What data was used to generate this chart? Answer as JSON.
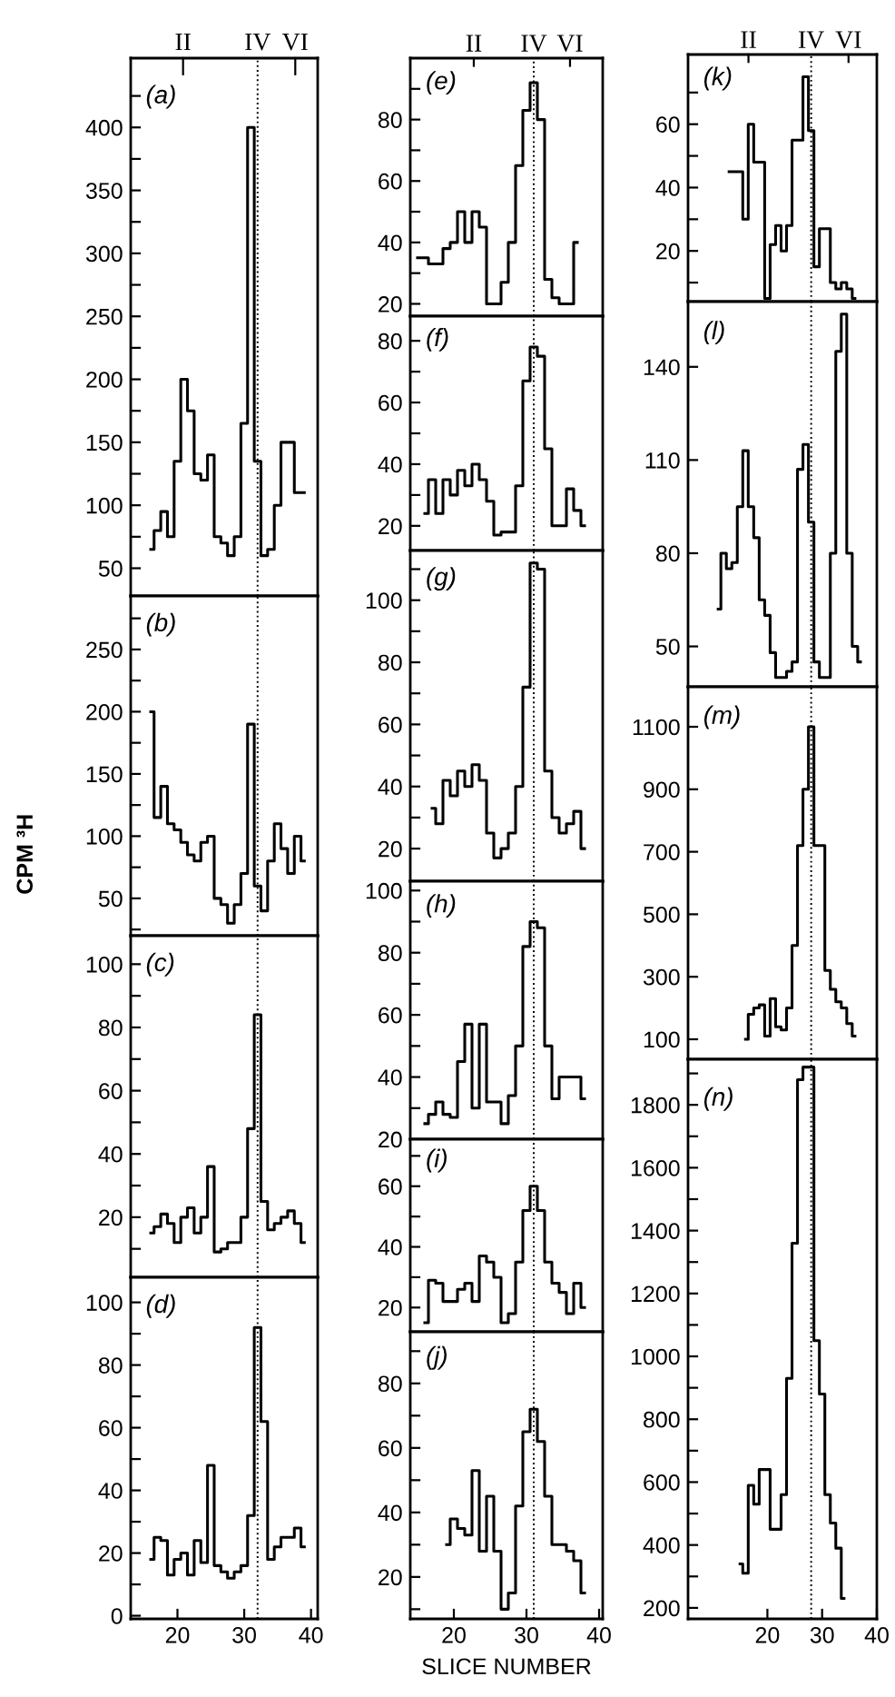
{
  "chart_data": [
    {
      "type": "step",
      "annotations": [
        "(a)",
        "II",
        "VI"
      ],
      "xlim": [
        13,
        41
      ],
      "ylim": [
        28,
        455
      ],
      "yticks": [
        50,
        100,
        150,
        200,
        250,
        300,
        350,
        400,
        {
          "value": 75,
          "label": null
        },
        {
          "value": 125,
          "label": null
        },
        {
          "value": 175,
          "label": null
        },
        {
          "value": 225,
          "label": null
        },
        {
          "value": 275,
          "label": null
        },
        {
          "value": 325,
          "label": null
        },
        {
          "value": 375,
          "label": null
        },
        {
          "value": 425,
          "label": null
        }
      ],
      "tick_labels": "y",
      "ref_lines": [
        {
          "axis": "x",
          "value": 32,
          "line_style": "dotted",
          "color": "#000000",
          "label": "IV"
        }
      ],
      "series": [
        {
          "color": "#000000",
          "x": [
            16,
            17,
            18,
            19,
            20,
            21,
            22,
            23,
            24,
            25,
            26,
            27,
            28,
            29,
            30,
            31,
            32,
            33,
            34,
            35,
            36,
            37,
            38,
            39
          ],
          "values": [
            65,
            80,
            95,
            75,
            135,
            200,
            175,
            125,
            120,
            140,
            75,
            70,
            60,
            75,
            165,
            400,
            135,
            60,
            65,
            100,
            150,
            150,
            110,
            110
          ]
        }
      ]
    },
    {
      "type": "step",
      "annotations": [
        "(b)"
      ],
      "ylabel": "CPM ³H",
      "xlim": [
        13,
        41
      ],
      "ylim": [
        20,
        293
      ],
      "yticks": [
        50,
        100,
        150,
        200,
        250,
        {
          "value": 25,
          "label": null
        },
        {
          "value": 75,
          "label": null
        },
        {
          "value": 125,
          "label": null
        },
        {
          "value": 175,
          "label": null
        },
        {
          "value": 225,
          "label": null
        },
        {
          "value": 275,
          "label": null
        }
      ],
      "tick_labels": "y",
      "ref_lines": [
        {
          "axis": "x",
          "value": 32,
          "line_style": "dotted",
          "color": "#000000"
        }
      ],
      "series": [
        {
          "color": "#000000",
          "x": [
            16,
            17,
            18,
            19,
            20,
            21,
            22,
            23,
            24,
            25,
            26,
            27,
            28,
            29,
            30,
            31,
            32,
            33,
            34,
            35,
            36,
            37,
            38,
            39
          ],
          "values": [
            200,
            115,
            140,
            110,
            105,
            95,
            85,
            80,
            95,
            100,
            50,
            45,
            30,
            45,
            70,
            190,
            60,
            40,
            80,
            110,
            90,
            70,
            100,
            80
          ]
        }
      ]
    },
    {
      "type": "step",
      "annotations": [
        "(c)"
      ],
      "xlim": [
        13,
        41
      ],
      "ylim": [
        1,
        109
      ],
      "yticks": [
        20,
        40,
        60,
        80,
        100,
        {
          "value": 10,
          "label": null
        },
        {
          "value": 30,
          "label": null
        },
        {
          "value": 50,
          "label": null
        },
        {
          "value": 70,
          "label": null
        },
        {
          "value": 90,
          "label": null
        }
      ],
      "tick_labels": "y",
      "ref_lines": [
        {
          "axis": "x",
          "value": 32,
          "line_style": "dotted",
          "color": "#000000"
        }
      ],
      "series": [
        {
          "color": "#000000",
          "x": [
            16,
            17,
            18,
            19,
            20,
            21,
            22,
            23,
            24,
            25,
            26,
            27,
            28,
            29,
            30,
            31,
            32,
            33,
            34,
            35,
            36,
            37,
            38,
            39
          ],
          "values": [
            15,
            17,
            21,
            18,
            12,
            20,
            23,
            15,
            20,
            36,
            9,
            10,
            12,
            12,
            20,
            48,
            84,
            25,
            16,
            18,
            20,
            22,
            18,
            12
          ]
        }
      ]
    },
    {
      "type": "step",
      "annotations": [
        "(d)"
      ],
      "xlim": [
        13,
        41
      ],
      "ylim": [
        -1,
        108
      ],
      "xticks": [
        20,
        30,
        40
      ],
      "yticks": [
        0,
        20,
        40,
        60,
        80,
        100,
        {
          "value": 10,
          "label": null
        },
        {
          "value": 30,
          "label": null
        },
        {
          "value": 50,
          "label": null
        },
        {
          "value": 70,
          "label": null
        },
        {
          "value": 90,
          "label": null
        }
      ],
      "ref_lines": [
        {
          "axis": "x",
          "value": 32,
          "line_style": "dotted",
          "color": "#000000"
        }
      ],
      "series": [
        {
          "color": "#000000",
          "x": [
            16,
            17,
            18,
            19,
            20,
            21,
            22,
            23,
            24,
            25,
            26,
            27,
            28,
            29,
            30,
            31,
            32,
            33,
            34,
            35,
            36,
            37,
            38,
            39
          ],
          "values": [
            18,
            25,
            24,
            13,
            18,
            20,
            13,
            24,
            17,
            48,
            16,
            14,
            12,
            14,
            16,
            32,
            92,
            62,
            18,
            22,
            25,
            25,
            28,
            22
          ]
        }
      ]
    },
    {
      "type": "step",
      "annotations": [
        "(e)",
        "II",
        "VI"
      ],
      "xlim": [
        14,
        40.5
      ],
      "ylim": [
        16,
        100
      ],
      "yticks": [
        20,
        40,
        60,
        80,
        {
          "value": 30,
          "label": null
        },
        {
          "value": 50,
          "label": null
        },
        {
          "value": 70,
          "label": null
        },
        {
          "value": 90,
          "label": null
        }
      ],
      "tick_labels": "y",
      "ref_lines": [
        {
          "axis": "x",
          "value": 31,
          "line_style": "dotted",
          "color": "#000000",
          "label": "IV"
        }
      ],
      "series": [
        {
          "color": "#000000",
          "x": [
            15,
            16,
            17,
            18,
            19,
            20,
            21,
            22,
            23,
            24,
            25,
            26,
            27,
            28,
            29,
            30,
            31,
            32,
            33,
            34,
            35,
            36,
            37
          ],
          "values": [
            35,
            35,
            33,
            33,
            38,
            40,
            50,
            40,
            50,
            45,
            20,
            20,
            27,
            40,
            65,
            83,
            92,
            80,
            28,
            22,
            20,
            20,
            40
          ]
        }
      ]
    },
    {
      "type": "step",
      "annotations": [
        "(f)"
      ],
      "xlim": [
        14,
        40.5
      ],
      "ylim": [
        12,
        88
      ],
      "yticks": [
        20,
        40,
        60,
        80,
        {
          "value": 30,
          "label": null
        },
        {
          "value": 50,
          "label": null
        },
        {
          "value": 70,
          "label": null
        }
      ],
      "tick_labels": "y",
      "ref_lines": [
        {
          "axis": "x",
          "value": 31,
          "line_style": "dotted",
          "color": "#000000"
        }
      ],
      "series": [
        {
          "color": "#000000",
          "x": [
            16,
            17,
            18,
            19,
            20,
            21,
            22,
            23,
            24,
            25,
            26,
            27,
            28,
            29,
            30,
            31,
            32,
            33,
            34,
            35,
            36,
            37,
            38
          ],
          "values": [
            24,
            35,
            24,
            35,
            30,
            38,
            33,
            40,
            35,
            28,
            17,
            18,
            18,
            33,
            67,
            78,
            75,
            45,
            20,
            20,
            32,
            25,
            20
          ]
        }
      ]
    },
    {
      "type": "step",
      "annotations": [
        "(g)"
      ],
      "xlim": [
        14,
        40.5
      ],
      "ylim": [
        9.5,
        116
      ],
      "yticks": [
        20,
        40,
        60,
        80,
        100,
        {
          "value": 30,
          "label": null
        },
        {
          "value": 50,
          "label": null
        },
        {
          "value": 70,
          "label": null
        },
        {
          "value": 90,
          "label": null
        },
        {
          "value": 110,
          "label": null
        }
      ],
      "tick_labels": "y",
      "ref_lines": [
        {
          "axis": "x",
          "value": 31,
          "line_style": "dotted",
          "color": "#000000"
        }
      ],
      "series": [
        {
          "color": "#000000",
          "x": [
            17,
            18,
            19,
            20,
            21,
            22,
            23,
            24,
            25,
            26,
            27,
            28,
            29,
            30,
            31,
            32,
            33,
            34,
            35,
            36,
            37,
            38
          ],
          "values": [
            33,
            28,
            42,
            37,
            45,
            40,
            47,
            42,
            25,
            17,
            20,
            25,
            40,
            72,
            112,
            110,
            45,
            30,
            25,
            28,
            32,
            20
          ]
        }
      ]
    },
    {
      "type": "step",
      "annotations": [
        "(h)"
      ],
      "xlim": [
        14,
        40.5
      ],
      "ylim": [
        20,
        103
      ],
      "yticks": [
        20,
        40,
        60,
        80,
        100,
        {
          "value": 30,
          "label": null
        },
        {
          "value": 50,
          "label": null
        },
        {
          "value": 70,
          "label": null
        },
        {
          "value": 90,
          "label": null
        }
      ],
      "tick_labels": "y",
      "ref_lines": [
        {
          "axis": "x",
          "value": 31,
          "line_style": "dotted",
          "color": "#000000"
        }
      ],
      "series": [
        {
          "color": "#000000",
          "x": [
            16,
            17,
            18,
            19,
            20,
            21,
            22,
            23,
            24,
            25,
            26,
            27,
            28,
            29,
            30,
            31,
            32,
            33,
            34,
            35,
            36,
            37,
            38
          ],
          "values": [
            25,
            28,
            32,
            28,
            27,
            45,
            57,
            30,
            57,
            32,
            32,
            25,
            34,
            50,
            82,
            90,
            88,
            50,
            33,
            40,
            40,
            40,
            33
          ]
        }
      ]
    },
    {
      "type": "step",
      "annotations": [
        "(i)"
      ],
      "xlim": [
        14,
        40.5
      ],
      "ylim": [
        12,
        75.5
      ],
      "yticks": [
        20,
        40,
        60,
        {
          "value": 30,
          "label": null
        },
        {
          "value": 50,
          "label": null
        },
        {
          "value": 70,
          "label": null
        }
      ],
      "tick_labels": "y",
      "ref_lines": [
        {
          "axis": "x",
          "value": 31,
          "line_style": "dotted",
          "color": "#000000"
        }
      ],
      "series": [
        {
          "color": "#000000",
          "x": [
            16,
            17,
            18,
            19,
            20,
            21,
            22,
            23,
            24,
            25,
            26,
            27,
            28,
            29,
            30,
            31,
            32,
            33,
            34,
            35,
            36,
            37,
            38
          ],
          "values": [
            15,
            29,
            28,
            22,
            22,
            26,
            28,
            22,
            37,
            35,
            30,
            15,
            18,
            35,
            52,
            60,
            52,
            35,
            28,
            25,
            18,
            28,
            20
          ]
        }
      ]
    },
    {
      "type": "step",
      "annotations": [
        "(j)"
      ],
      "xlabel": "SLICE NUMBER",
      "xlim": [
        14,
        40.5
      ],
      "ylim": [
        7,
        96
      ],
      "xticks": [
        20,
        30,
        40
      ],
      "yticks": [
        20,
        40,
        60,
        80,
        {
          "value": 10,
          "label": null
        },
        {
          "value": 30,
          "label": null
        },
        {
          "value": 50,
          "label": null
        },
        {
          "value": 70,
          "label": null
        },
        {
          "value": 90,
          "label": null
        }
      ],
      "ref_lines": [
        {
          "axis": "x",
          "value": 31,
          "line_style": "dotted",
          "color": "#000000"
        }
      ],
      "series": [
        {
          "color": "#000000",
          "x": [
            19,
            20,
            21,
            22,
            23,
            24,
            25,
            26,
            27,
            28,
            29,
            30,
            31,
            32,
            33,
            34,
            35,
            36,
            37,
            38
          ],
          "values": [
            30,
            38,
            35,
            33,
            53,
            28,
            45,
            28,
            10,
            15,
            42,
            65,
            72,
            62,
            45,
            30,
            30,
            28,
            25,
            15
          ]
        }
      ]
    },
    {
      "type": "step",
      "annotations": [
        "(k)",
        "II",
        "VI"
      ],
      "xlim": [
        5.5,
        40
      ],
      "ylim": [
        4,
        82
      ],
      "yticks": [
        20,
        40,
        60,
        {
          "value": 10,
          "label": null
        },
        {
          "value": 30,
          "label": null
        },
        {
          "value": 50,
          "label": null
        },
        {
          "value": 70,
          "label": null
        }
      ],
      "tick_labels": "y",
      "ref_lines": [
        {
          "axis": "x",
          "value": 28,
          "line_style": "dotted",
          "color": "#000000",
          "label": "IV"
        }
      ],
      "series": [
        {
          "color": "#000000",
          "x": [
            13,
            14,
            15,
            16,
            17,
            18,
            19,
            20,
            21,
            22,
            23,
            24,
            25,
            26,
            27,
            28,
            29,
            30,
            31,
            32,
            33,
            34,
            35,
            36
          ],
          "values": [
            45,
            45,
            45,
            30,
            60,
            48,
            48,
            5,
            22,
            28,
            20,
            28,
            55,
            55,
            75,
            58,
            15,
            27,
            27,
            10,
            8,
            10,
            8,
            5
          ]
        }
      ]
    },
    {
      "type": "step",
      "annotations": [
        "(l)"
      ],
      "xlim": [
        5.5,
        40
      ],
      "ylim": [
        37,
        161
      ],
      "yticks": [
        50,
        80,
        110,
        140
      ],
      "tick_labels": "y",
      "ref_lines": [
        {
          "axis": "x",
          "value": 28,
          "line_style": "dotted",
          "color": "#000000"
        }
      ],
      "series": [
        {
          "color": "#000000",
          "x": [
            11,
            12,
            13,
            14,
            15,
            16,
            17,
            18,
            19,
            20,
            21,
            22,
            23,
            24,
            25,
            26,
            27,
            28,
            29,
            30,
            31,
            32,
            33,
            34,
            35,
            36,
            37
          ],
          "values": [
            62,
            80,
            75,
            77,
            95,
            113,
            95,
            85,
            65,
            60,
            48,
            40,
            40,
            42,
            45,
            107,
            115,
            90,
            45,
            40,
            40,
            80,
            145,
            157,
            80,
            50,
            45
          ]
        }
      ]
    },
    {
      "type": "step",
      "annotations": [
        "(m)"
      ],
      "xlim": [
        5.5,
        40
      ],
      "ylim": [
        36,
        1228
      ],
      "yticks": [
        100,
        300,
        500,
        700,
        900,
        1100
      ],
      "tick_labels": "y",
      "ref_lines": [
        {
          "axis": "x",
          "value": 28,
          "line_style": "dotted",
          "color": "#000000"
        }
      ],
      "series": [
        {
          "color": "#000000",
          "x": [
            16,
            17,
            18,
            19,
            20,
            21,
            22,
            23,
            24,
            25,
            26,
            27,
            28,
            29,
            30,
            31,
            32,
            33,
            34,
            35,
            36
          ],
          "values": [
            100,
            180,
            200,
            210,
            110,
            230,
            140,
            130,
            200,
            400,
            720,
            900,
            1100,
            720,
            720,
            320,
            260,
            220,
            200,
            150,
            110
          ]
        }
      ]
    },
    {
      "type": "step",
      "annotations": [
        "(n)"
      ],
      "xlim": [
        5.5,
        40
      ],
      "ylim": [
        165,
        1945
      ],
      "xticks": [
        20,
        30,
        40
      ],
      "yticks": [
        200,
        400,
        600,
        800,
        1000,
        1200,
        1400,
        1600,
        1800,
        {
          "value": 300,
          "label": null
        },
        {
          "value": 500,
          "label": null
        },
        {
          "value": 700,
          "label": null
        },
        {
          "value": 900,
          "label": null
        },
        {
          "value": 1100,
          "label": null
        },
        {
          "value": 1300,
          "label": null
        },
        {
          "value": 1500,
          "label": null
        },
        {
          "value": 1700,
          "label": null
        },
        {
          "value": 1900,
          "label": null
        }
      ],
      "ref_lines": [
        {
          "axis": "x",
          "value": 28,
          "line_style": "dotted",
          "color": "#000000"
        }
      ],
      "series": [
        {
          "color": "#000000",
          "x": [
            15,
            16,
            17,
            18,
            19,
            20,
            21,
            22,
            23,
            24,
            25,
            26,
            27,
            28,
            29,
            30,
            31,
            32,
            33,
            34
          ],
          "values": [
            340,
            310,
            590,
            530,
            640,
            640,
            450,
            450,
            560,
            930,
            1360,
            1880,
            1920,
            1920,
            1050,
            880,
            560,
            470,
            390,
            230
          ]
        }
      ]
    }
  ]
}
